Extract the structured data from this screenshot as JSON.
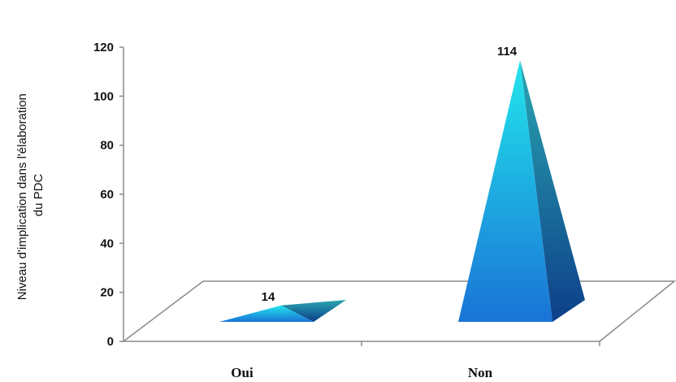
{
  "chart_data": {
    "type": "bar",
    "shape": "pyramid-3d",
    "categories": [
      "Oui",
      "Non"
    ],
    "values": [
      14,
      114
    ],
    "data_labels": [
      "14",
      "114"
    ],
    "ylabel_lines": [
      "Niveau d'implication dans l'élaboration",
      "du PDC"
    ],
    "ylim": [
      0,
      120
    ],
    "yticks": [
      "0",
      "20",
      "40",
      "60",
      "80",
      "100",
      "120"
    ],
    "grid": false,
    "legend": "none",
    "colors": {
      "front_top": "#22e6ec",
      "front_bottom": "#1a73d6",
      "side_top": "#2aa6b0",
      "side_bottom": "#0d3f8a",
      "floor_stroke": "#8a8a8a"
    }
  }
}
